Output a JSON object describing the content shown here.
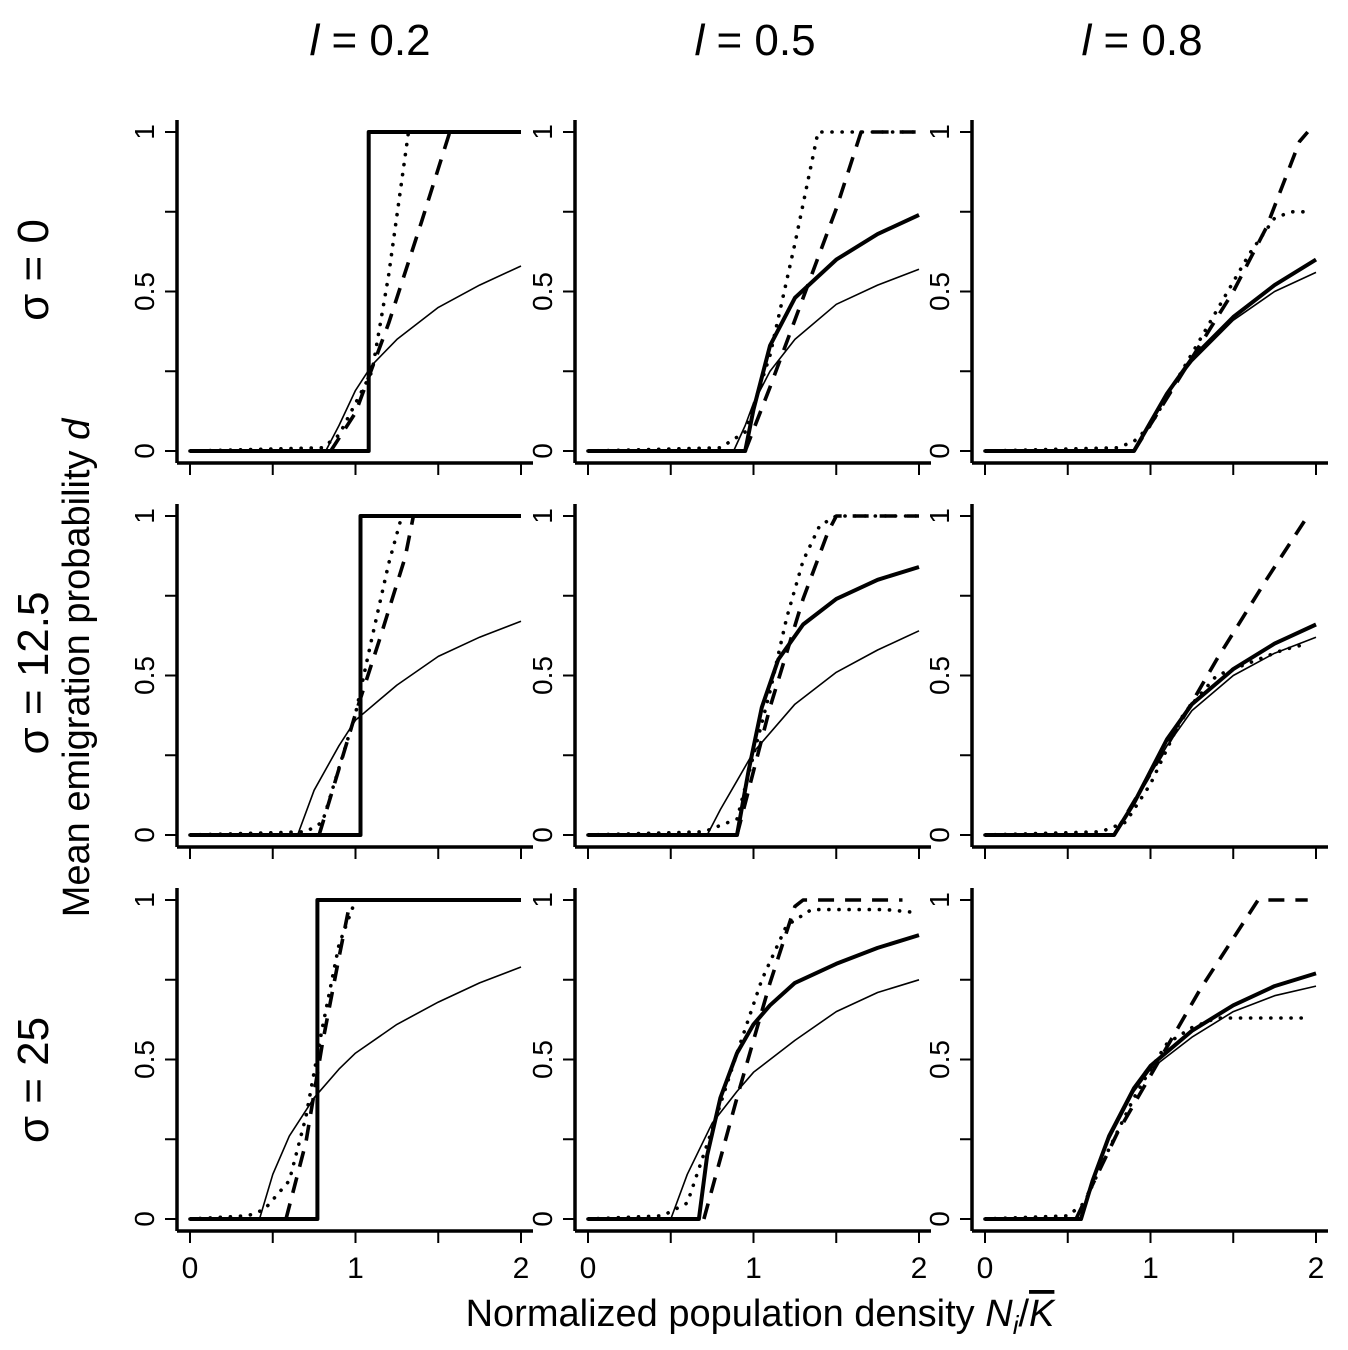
{
  "figure": {
    "col_labels": [
      {
        "var": "l",
        "eq": " = 0.2"
      },
      {
        "var": "l",
        "eq": " = 0.5"
      },
      {
        "var": "l",
        "eq": " = 0.8"
      }
    ],
    "row_labels": [
      {
        "var": "σ",
        "eq": " = 0"
      },
      {
        "var": "σ",
        "eq": " = 12.5"
      },
      {
        "var": "σ",
        "eq": " = 25"
      }
    ],
    "ylabel_main": "Mean emigration probability ",
    "ylabel_var": "d",
    "xlabel_main": "Normalized population density ",
    "xlabel_N": "N",
    "xlabel_sub": "i",
    "xlabel_slash": "/",
    "xlabel_K": "K",
    "x_tick_labels": [
      "0",
      "1",
      "2"
    ],
    "y_tick_labels": [
      "0",
      "0.5",
      "1"
    ]
  },
  "chart_data": [
    {
      "type": "line",
      "row": "σ = 0",
      "col": "l = 0.2",
      "xlim": [
        0,
        2
      ],
      "ylim": [
        0,
        1
      ],
      "x_ticks": [
        0,
        0.5,
        1,
        1.5,
        2
      ],
      "y_ticks": [
        0,
        0.25,
        0.5,
        0.75,
        1
      ],
      "series": [
        {
          "style": "thick-solid",
          "x": [
            0,
            1.08,
            1.08,
            1.1,
            2
          ],
          "y": [
            0,
            0,
            1,
            1,
            1
          ]
        },
        {
          "style": "thin-solid",
          "x": [
            0,
            0.82,
            0.9,
            1.0,
            1.1,
            1.25,
            1.5,
            1.75,
            2.0
          ],
          "y": [
            0,
            0,
            0.08,
            0.19,
            0.27,
            0.35,
            0.45,
            0.52,
            0.58
          ]
        },
        {
          "style": "dotted",
          "x": [
            0,
            0.8,
            0.9,
            1.1,
            1.2,
            1.32
          ],
          "y": [
            0,
            0.01,
            0.05,
            0.25,
            0.55,
            1
          ]
        },
        {
          "style": "dashed",
          "x": [
            0.85,
            1.0,
            1.2,
            1.4,
            1.57
          ],
          "y": [
            0,
            0.12,
            0.4,
            0.72,
            1
          ]
        }
      ]
    },
    {
      "type": "line",
      "row": "σ = 0",
      "col": "l = 0.5",
      "xlim": [
        0,
        2
      ],
      "ylim": [
        0,
        1
      ],
      "x_ticks": [
        0,
        0.5,
        1,
        1.5,
        2
      ],
      "y_ticks": [
        0,
        0.25,
        0.5,
        0.75,
        1
      ],
      "series": [
        {
          "style": "thick-solid",
          "x": [
            0,
            0.95,
            1.0,
            1.1,
            1.25,
            1.5,
            1.75,
            2.0
          ],
          "y": [
            0,
            0,
            0.13,
            0.33,
            0.48,
            0.6,
            0.68,
            0.74
          ]
        },
        {
          "style": "thin-solid",
          "x": [
            0,
            0.88,
            0.95,
            1.0,
            1.1,
            1.25,
            1.5,
            1.75,
            2.0
          ],
          "y": [
            0,
            0,
            0.08,
            0.15,
            0.25,
            0.35,
            0.46,
            0.52,
            0.57
          ]
        },
        {
          "style": "dotted",
          "x": [
            0,
            0.8,
            0.95,
            1.1,
            1.25,
            1.39,
            2.0
          ],
          "y": [
            0,
            0.01,
            0.06,
            0.3,
            0.65,
            1,
            1
          ]
        },
        {
          "style": "dashed",
          "x": [
            0.95,
            1.1,
            1.3,
            1.5,
            1.65,
            2.0
          ],
          "y": [
            0,
            0.2,
            0.48,
            0.76,
            1,
            1
          ]
        }
      ]
    },
    {
      "type": "line",
      "row": "σ = 0",
      "col": "l = 0.8",
      "xlim": [
        0,
        2
      ],
      "ylim": [
        0,
        1
      ],
      "x_ticks": [
        0,
        0.5,
        1,
        1.5,
        2
      ],
      "y_ticks": [
        0,
        0.25,
        0.5,
        0.75,
        1
      ],
      "series": [
        {
          "style": "thick-solid",
          "x": [
            0,
            0.9,
            1.0,
            1.1,
            1.25,
            1.5,
            1.75,
            2.0
          ],
          "y": [
            0,
            0,
            0.09,
            0.18,
            0.29,
            0.42,
            0.52,
            0.6
          ]
        },
        {
          "style": "thin-solid",
          "x": [
            0,
            0.9,
            1.0,
            1.1,
            1.25,
            1.5,
            1.75,
            2.0
          ],
          "y": [
            0,
            0,
            0.09,
            0.18,
            0.28,
            0.41,
            0.5,
            0.56
          ]
        },
        {
          "style": "dotted",
          "x": [
            0,
            0.8,
            0.9,
            1.0,
            1.2,
            1.4,
            1.6,
            1.75,
            1.85,
            1.95
          ],
          "y": [
            0,
            0.01,
            0.03,
            0.08,
            0.26,
            0.44,
            0.62,
            0.73,
            0.75,
            0.75
          ]
        },
        {
          "style": "dashed",
          "x": [
            0.9,
            1.2,
            1.5,
            1.7,
            1.9,
            1.95
          ],
          "y": [
            0,
            0.25,
            0.5,
            0.7,
            0.97,
            1
          ]
        }
      ]
    },
    {
      "type": "line",
      "row": "σ = 12.5",
      "col": "l = 0.2",
      "xlim": [
        0,
        2
      ],
      "ylim": [
        0,
        1
      ],
      "x_ticks": [
        0,
        0.5,
        1,
        1.5,
        2
      ],
      "y_ticks": [
        0,
        0.25,
        0.5,
        0.75,
        1
      ],
      "series": [
        {
          "style": "thick-solid",
          "x": [
            0,
            1.03,
            1.03,
            1.05,
            2
          ],
          "y": [
            0,
            0,
            1,
            1,
            1
          ]
        },
        {
          "style": "thin-solid",
          "x": [
            0,
            0.65,
            0.75,
            0.9,
            1.0,
            1.25,
            1.5,
            1.75,
            2.0
          ],
          "y": [
            0,
            0,
            0.14,
            0.28,
            0.36,
            0.47,
            0.56,
            0.62,
            0.67
          ]
        },
        {
          "style": "dotted",
          "x": [
            0,
            0.7,
            0.8,
            1.0,
            1.1,
            1.2,
            1.28
          ],
          "y": [
            0,
            0.01,
            0.04,
            0.38,
            0.62,
            0.85,
            1
          ]
        },
        {
          "style": "dashed",
          "x": [
            0.78,
            1.0,
            1.15,
            1.3,
            1.35
          ],
          "y": [
            0,
            0.38,
            0.62,
            0.87,
            1
          ]
        }
      ]
    },
    {
      "type": "line",
      "row": "σ = 12.5",
      "col": "l = 0.5",
      "xlim": [
        0,
        2
      ],
      "ylim": [
        0,
        1
      ],
      "x_ticks": [
        0,
        0.5,
        1,
        1.5,
        2
      ],
      "y_ticks": [
        0,
        0.25,
        0.5,
        0.75,
        1
      ],
      "series": [
        {
          "style": "thick-solid",
          "x": [
            0,
            0.9,
            0.97,
            1.05,
            1.15,
            1.3,
            1.5,
            1.75,
            2.0
          ],
          "y": [
            0,
            0,
            0.2,
            0.4,
            0.55,
            0.66,
            0.74,
            0.8,
            0.84
          ]
        },
        {
          "style": "thin-solid",
          "x": [
            0,
            0.72,
            0.8,
            0.9,
            1.0,
            1.25,
            1.5,
            1.75,
            2.0
          ],
          "y": [
            0,
            0,
            0.08,
            0.17,
            0.26,
            0.41,
            0.51,
            0.58,
            0.64
          ]
        },
        {
          "style": "dotted",
          "x": [
            0,
            0.7,
            0.9,
            1.1,
            1.2,
            1.3,
            1.4,
            1.5,
            2.0
          ],
          "y": [
            0,
            0.01,
            0.05,
            0.45,
            0.68,
            0.86,
            0.97,
            1,
            1
          ]
        },
        {
          "style": "dashed",
          "x": [
            0.9,
            1.1,
            1.3,
            1.45,
            1.5,
            2.0
          ],
          "y": [
            0,
            0.4,
            0.74,
            0.95,
            1,
            1
          ]
        }
      ]
    },
    {
      "type": "line",
      "row": "σ = 12.5",
      "col": "l = 0.8",
      "xlim": [
        0,
        2
      ],
      "ylim": [
        0,
        1
      ],
      "x_ticks": [
        0,
        0.5,
        1,
        1.5,
        2
      ],
      "y_ticks": [
        0,
        0.25,
        0.5,
        0.75,
        1
      ],
      "series": [
        {
          "style": "thick-solid",
          "x": [
            0,
            0.78,
            0.9,
            1.0,
            1.1,
            1.25,
            1.5,
            1.75,
            2.0
          ],
          "y": [
            0,
            0,
            0.1,
            0.2,
            0.3,
            0.41,
            0.52,
            0.6,
            0.66
          ]
        },
        {
          "style": "thin-solid",
          "x": [
            0,
            0.78,
            0.9,
            1.0,
            1.1,
            1.25,
            1.5,
            1.75,
            2.0
          ],
          "y": [
            0,
            0,
            0.1,
            0.19,
            0.28,
            0.39,
            0.5,
            0.57,
            0.62
          ]
        },
        {
          "style": "dotted",
          "x": [
            0,
            0.7,
            0.85,
            1.0,
            1.2,
            1.4,
            1.6,
            1.8,
            1.95
          ],
          "y": [
            0,
            0.01,
            0.04,
            0.16,
            0.38,
            0.5,
            0.54,
            0.58,
            0.6
          ]
        },
        {
          "style": "dashed",
          "x": [
            0.78,
            1.1,
            1.4,
            1.7,
            1.95
          ],
          "y": [
            0,
            0.28,
            0.55,
            0.8,
            1
          ]
        }
      ]
    },
    {
      "type": "line",
      "row": "σ = 25",
      "col": "l = 0.2",
      "xlim": [
        0,
        2
      ],
      "ylim": [
        0,
        1
      ],
      "x_ticks": [
        0,
        0.5,
        1,
        1.5,
        2
      ],
      "y_ticks": [
        0,
        0.25,
        0.5,
        0.75,
        1
      ],
      "series": [
        {
          "style": "thick-solid",
          "x": [
            0,
            0.77,
            0.77,
            0.79,
            2
          ],
          "y": [
            0,
            0,
            1,
            1,
            1
          ]
        },
        {
          "style": "thin-solid",
          "x": [
            0,
            0.42,
            0.5,
            0.6,
            0.75,
            0.9,
            1.0,
            1.25,
            1.5,
            1.75,
            2.0
          ],
          "y": [
            0,
            0,
            0.14,
            0.26,
            0.38,
            0.47,
            0.52,
            0.61,
            0.68,
            0.74,
            0.79
          ]
        },
        {
          "style": "dotted",
          "x": [
            0,
            0.35,
            0.45,
            0.6,
            0.7,
            0.8,
            0.9,
            1.0
          ],
          "y": [
            0,
            0.01,
            0.03,
            0.12,
            0.32,
            0.6,
            0.86,
            1
          ]
        },
        {
          "style": "dashed",
          "x": [
            0.58,
            0.7,
            0.8,
            0.9,
            0.97
          ],
          "y": [
            0,
            0.24,
            0.55,
            0.82,
            1
          ]
        }
      ]
    },
    {
      "type": "line",
      "row": "σ = 25",
      "col": "l = 0.5",
      "xlim": [
        0,
        2
      ],
      "ylim": [
        0,
        1
      ],
      "x_ticks": [
        0,
        0.5,
        1,
        1.5,
        2
      ],
      "y_ticks": [
        0,
        0.25,
        0.5,
        0.75,
        1
      ],
      "series": [
        {
          "style": "thick-solid",
          "x": [
            0,
            0.67,
            0.72,
            0.8,
            0.9,
            1.0,
            1.1,
            1.25,
            1.5,
            1.75,
            2.0
          ],
          "y": [
            0,
            0,
            0.2,
            0.38,
            0.52,
            0.61,
            0.67,
            0.74,
            0.8,
            0.85,
            0.89
          ]
        },
        {
          "style": "thin-solid",
          "x": [
            0,
            0.5,
            0.6,
            0.75,
            0.9,
            1.0,
            1.25,
            1.5,
            1.75,
            2.0
          ],
          "y": [
            0,
            0,
            0.14,
            0.3,
            0.4,
            0.46,
            0.56,
            0.65,
            0.71,
            0.75
          ]
        },
        {
          "style": "dotted",
          "x": [
            0,
            0.45,
            0.6,
            0.75,
            0.9,
            1.05,
            1.2,
            1.35,
            1.6,
            1.8,
            2.0
          ],
          "y": [
            0,
            0.01,
            0.05,
            0.28,
            0.52,
            0.75,
            0.92,
            0.97,
            0.97,
            0.97,
            0.96
          ]
        },
        {
          "style": "dashed",
          "x": [
            0.7,
            0.9,
            1.1,
            1.25,
            1.3,
            1.9
          ],
          "y": [
            0,
            0.38,
            0.74,
            0.98,
            1,
            1
          ]
        }
      ]
    },
    {
      "type": "line",
      "row": "σ = 25",
      "col": "l = 0.8",
      "xlim": [
        0,
        2
      ],
      "ylim": [
        0,
        1
      ],
      "x_ticks": [
        0,
        0.5,
        1,
        1.5,
        2
      ],
      "y_ticks": [
        0,
        0.25,
        0.5,
        0.75,
        1
      ],
      "series": [
        {
          "style": "thick-solid",
          "x": [
            0,
            0.58,
            0.65,
            0.75,
            0.9,
            1.0,
            1.25,
            1.5,
            1.75,
            2.0
          ],
          "y": [
            0,
            0,
            0.12,
            0.26,
            0.41,
            0.48,
            0.59,
            0.67,
            0.73,
            0.77
          ]
        },
        {
          "style": "thin-solid",
          "x": [
            0,
            0.58,
            0.65,
            0.75,
            0.9,
            1.0,
            1.25,
            1.5,
            1.75,
            2.0
          ],
          "y": [
            0,
            0,
            0.12,
            0.25,
            0.4,
            0.47,
            0.57,
            0.65,
            0.7,
            0.73
          ]
        },
        {
          "style": "dotted",
          "x": [
            0,
            0.5,
            0.6,
            0.75,
            0.9,
            1.0,
            1.1,
            1.25,
            1.4,
            1.6,
            1.8,
            1.95
          ],
          "y": [
            0,
            0.01,
            0.05,
            0.22,
            0.38,
            0.47,
            0.55,
            0.6,
            0.63,
            0.63,
            0.63,
            0.63
          ]
        },
        {
          "style": "dashed",
          "x": [
            0.55,
            0.8,
            1.0,
            1.3,
            1.5,
            1.65,
            1.95
          ],
          "y": [
            0,
            0.27,
            0.45,
            0.72,
            0.88,
            1,
            1
          ]
        }
      ]
    }
  ]
}
